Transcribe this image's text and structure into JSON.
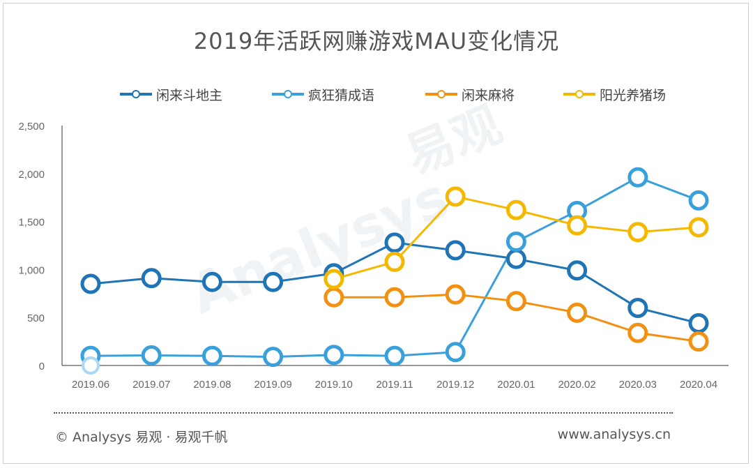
{
  "chart_data": {
    "type": "line",
    "title": "2019年活跃网赚游戏MAU变化情况",
    "categories": [
      "2019.06",
      "2019.07",
      "2019.08",
      "2019.09",
      "2019.10",
      "2019.11",
      "2019.12",
      "2020.01",
      "2020.02",
      "2020.03",
      "2020.04"
    ],
    "ylim": [
      0,
      2500
    ],
    "yticks": [
      "0",
      "500",
      "1,000",
      "1,500",
      "2,000",
      "2,500"
    ],
    "ytick_values": [
      0,
      500,
      1000,
      1500,
      2000,
      2500
    ],
    "grid": false,
    "legend_position": "top",
    "series": [
      {
        "name": "闲来斗地主",
        "color": "#1f74b6",
        "values": [
          850,
          910,
          870,
          870,
          960,
          1280,
          1200,
          1110,
          990,
          600,
          440
        ]
      },
      {
        "name": "疯狂猜成语",
        "color": "#3aa0dc",
        "values": [
          100,
          105,
          100,
          90,
          110,
          100,
          140,
          1290,
          1610,
          1960,
          1720
        ]
      },
      {
        "name": "闲来麻将",
        "color": "#f29111",
        "values": [
          null,
          null,
          null,
          null,
          710,
          710,
          740,
          670,
          550,
          340,
          250
        ]
      },
      {
        "name": "阳光养猪场",
        "color": "#f5b800",
        "values": [
          null,
          null,
          null,
          null,
          900,
          1080,
          1760,
          1620,
          1460,
          1390,
          1440
        ]
      }
    ]
  },
  "footer": {
    "left": "© Analysys 易观 · 易观千帆",
    "right": "www.analysys.cn"
  },
  "watermark": {
    "brand": "Analysys",
    "cn": "易观"
  }
}
